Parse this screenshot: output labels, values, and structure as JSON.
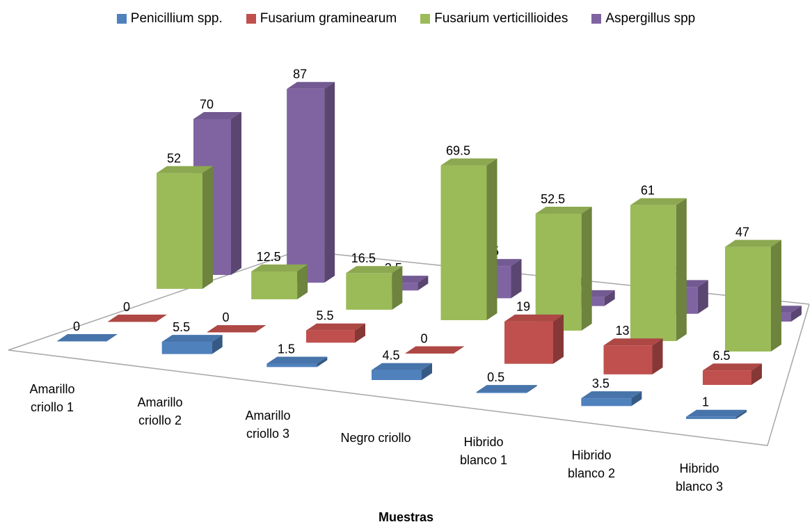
{
  "chart_data": {
    "type": "bar3d",
    "x_label": "Muestras",
    "categories": [
      "Amarillo criollo 1",
      "Amarillo criollo 2",
      "Amarillo criollo 3",
      "Negro criollo",
      "Hibrido blanco 1",
      "Hibrido blanco 2",
      "Hibrido blanco 3"
    ],
    "series": [
      {
        "name": "Penicillium spp.",
        "color": "#4f81bd",
        "values": [
          0,
          5.5,
          1.5,
          4.5,
          0.5,
          3.5,
          1
        ]
      },
      {
        "name": "Fusarium graminearum",
        "color": "#c0504d",
        "values": [
          0,
          0,
          5.5,
          0,
          19,
          13,
          6.5
        ]
      },
      {
        "name": "Fusarium verticillioides",
        "color": "#9bbb59",
        "values": [
          52,
          12.5,
          16.5,
          69.5,
          52.5,
          61,
          47
        ]
      },
      {
        "name": "Aspergillus spp",
        "color": "#8064a2",
        "values": [
          70,
          87,
          3.5,
          14.5,
          4,
          12,
          4
        ]
      }
    ],
    "legend": "top"
  }
}
